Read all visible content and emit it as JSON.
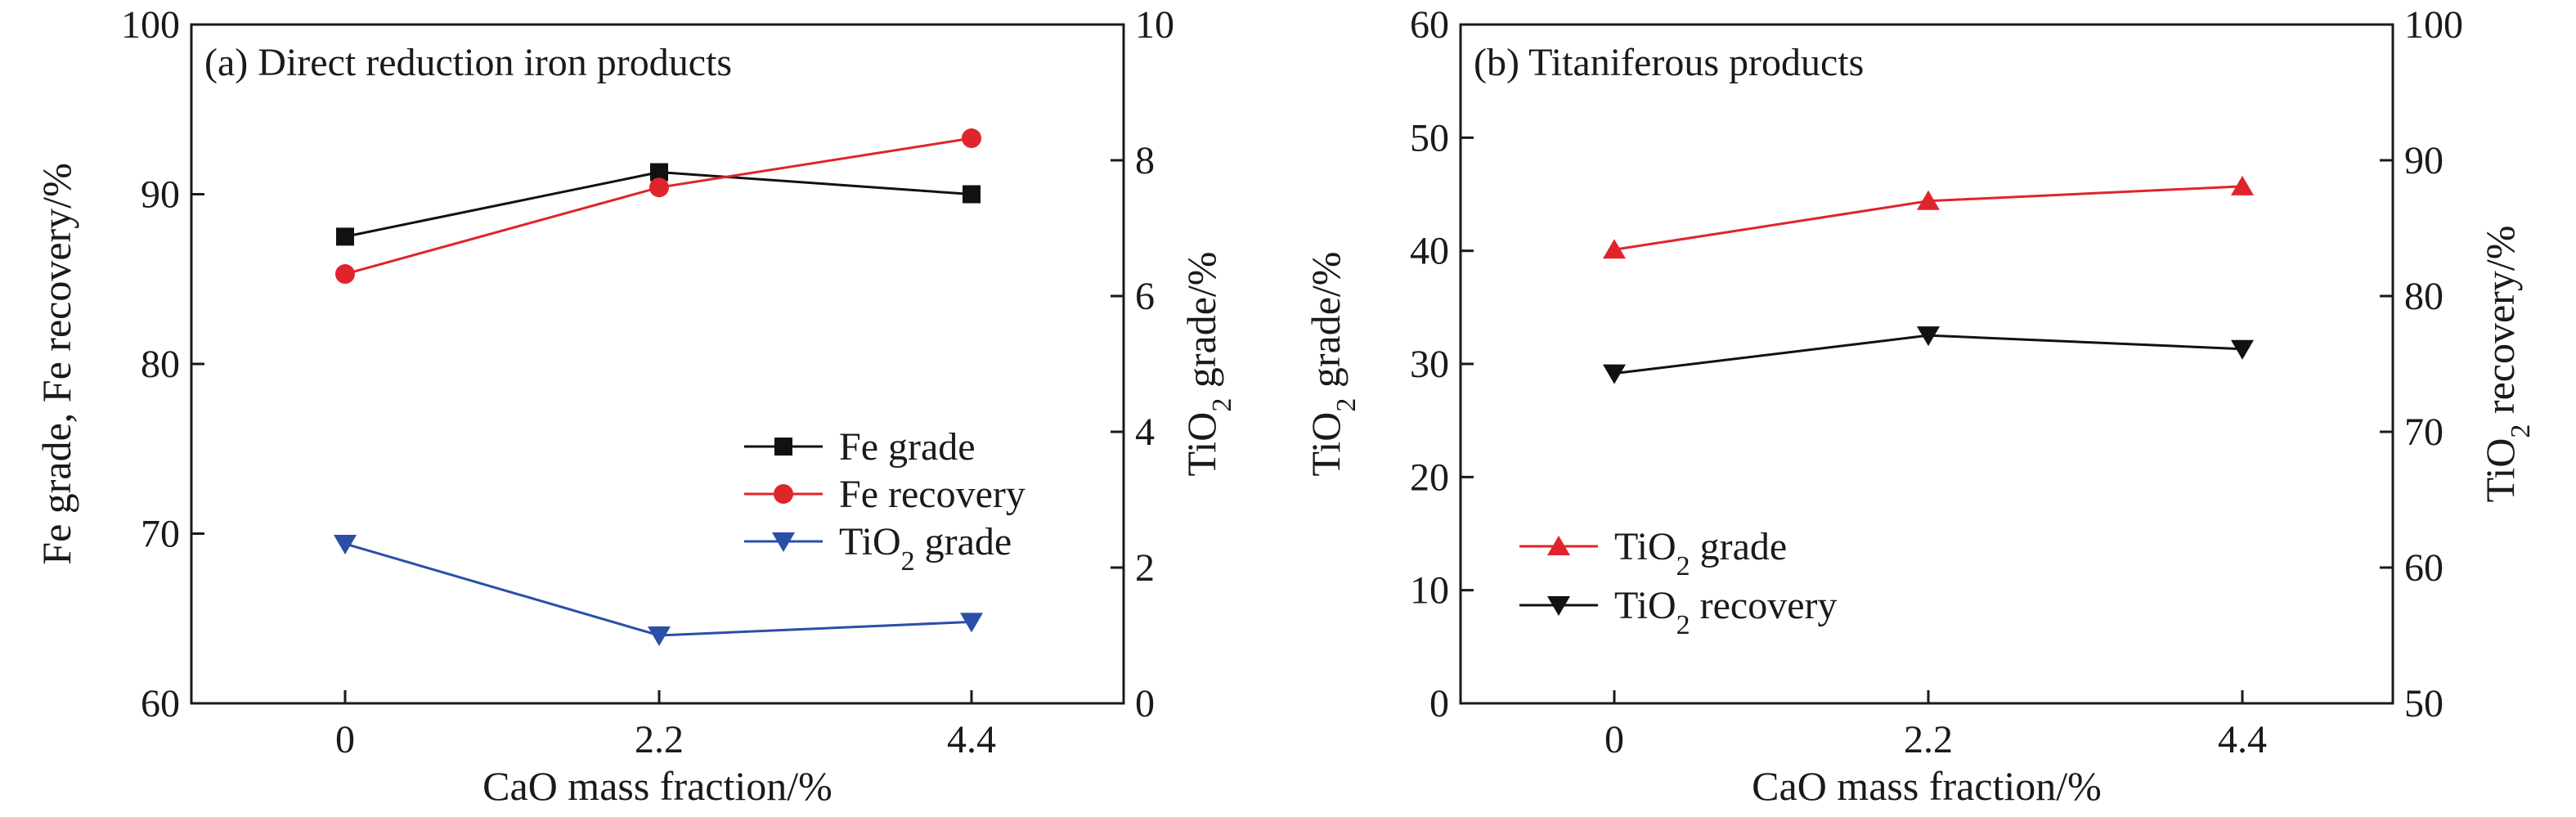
{
  "chart_data": [
    {
      "type": "line",
      "title": "(a) Direct reduction iron products",
      "xlabel": "CaO mass fraction/%",
      "ylabel": "Fe grade, Fe recovery/%",
      "ylabel_right": {
        "pre": "TiO",
        "sub": "2",
        "post": " grade/%"
      },
      "categories": [
        "0",
        "2.2",
        "4.4"
      ],
      "ylim": [
        60,
        100
      ],
      "yticks": [
        60,
        70,
        80,
        90,
        100
      ],
      "ylim_right": [
        0,
        10
      ],
      "yticks_right": [
        0,
        2,
        4,
        6,
        8,
        10
      ],
      "legend_position": "center-right",
      "series": [
        {
          "name": "Fe grade",
          "axis": "left",
          "marker": "square",
          "color": "#111111",
          "values": [
            87.5,
            91.3,
            90.0
          ]
        },
        {
          "name": "Fe recovery",
          "axis": "left",
          "marker": "circle",
          "color": "#e0242b",
          "values": [
            85.3,
            90.4,
            93.3
          ]
        },
        {
          "name": {
            "pre": "TiO",
            "sub": "2",
            "post": " grade"
          },
          "axis": "right",
          "marker": "triangle-down",
          "color": "#2b4ea8",
          "values": [
            2.35,
            1.0,
            1.2
          ]
        }
      ]
    },
    {
      "type": "line",
      "title": "(b) Titaniferous products",
      "xlabel": "CaO mass fraction/%",
      "ylabel": {
        "pre": "TiO",
        "sub": "2",
        "post": " grade/%"
      },
      "ylabel_right": {
        "pre": "TiO",
        "sub": "2",
        "post": " recovery/%"
      },
      "categories": [
        "0",
        "2.2",
        "4.4"
      ],
      "ylim": [
        0,
        60
      ],
      "yticks": [
        0,
        10,
        20,
        30,
        40,
        50,
        60
      ],
      "ylim_right": [
        50,
        100
      ],
      "yticks_right": [
        50,
        60,
        70,
        80,
        90,
        100
      ],
      "legend_position": "bottom-left",
      "series": [
        {
          "name": {
            "pre": "TiO",
            "sub": "2",
            "post": " grade"
          },
          "axis": "left",
          "marker": "triangle-up",
          "color": "#e0242b",
          "values": [
            40.1,
            44.4,
            45.7
          ]
        },
        {
          "name": {
            "pre": "TiO",
            "sub": "2",
            "post": " recovery"
          },
          "axis": "right",
          "marker": "triangle-down",
          "color": "#111111",
          "values": [
            74.3,
            77.1,
            76.1
          ]
        }
      ]
    }
  ]
}
